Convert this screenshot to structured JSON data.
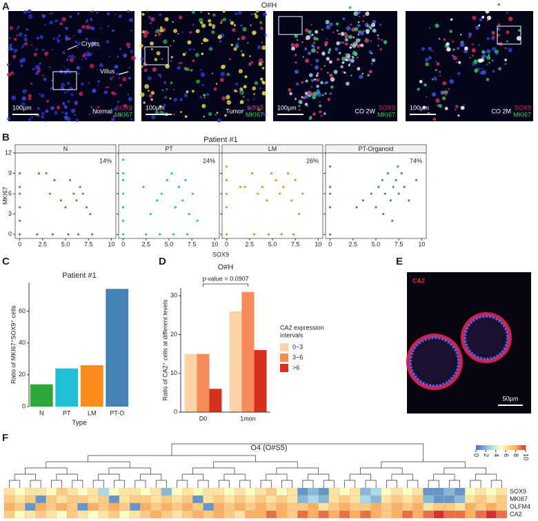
{
  "panel_labels": [
    "A",
    "B",
    "C",
    "D",
    "E",
    "F"
  ],
  "figure_a": {
    "title": "O#H",
    "images": [
      {
        "scale": "100µm",
        "caption": "Normal",
        "stains": [
          "SOX9",
          "MKI67"
        ],
        "notes": [
          "Crypts",
          "Villus"
        ]
      },
      {
        "scale": "100µm",
        "caption": "Tumor",
        "stains": [
          "SOX9",
          "MKI67"
        ]
      },
      {
        "scale": "100µm",
        "caption": "CO 2W",
        "stains": [
          "SOX9",
          "MKI67"
        ]
      },
      {
        "scale": "100µm",
        "caption": "CO 2M",
        "stains": [
          "SOX9",
          "MKI67"
        ]
      }
    ]
  },
  "figure_b": {
    "title": "Patient #1",
    "xlabel": "SOX9",
    "ylabel": "MKI67"
  },
  "figure_e": {
    "stain": "CA2",
    "scale": "50µm"
  },
  "chart_data": [
    {
      "type": "scatter",
      "title": "N",
      "annotation": "14%",
      "color": "#3aa63a",
      "x": [
        0,
        0,
        0,
        0,
        0,
        0,
        2.1,
        2.9,
        3.3,
        3.8,
        4.5,
        5.0,
        5.5,
        5.9,
        6.2,
        6.6,
        6.9,
        7.3,
        7.7,
        1.9,
        3.6,
        5.3,
        6.4,
        7.9
      ],
      "values": [
        9,
        7,
        6,
        4,
        2,
        0,
        9,
        9,
        6,
        8,
        5,
        4,
        8,
        6,
        5,
        7,
        6,
        4,
        3,
        0,
        0,
        0,
        0,
        0
      ],
      "xlim": [
        -0.5,
        10.5
      ],
      "ylim": [
        -0.6,
        12
      ],
      "xticks": [
        0,
        2.5,
        {
          "value": 5,
          "label": "5.0"
        },
        7.5,
        10
      ],
      "yticks": [
        0,
        3,
        6,
        9,
        12
      ]
    },
    {
      "type": "scatter",
      "title": "PT",
      "annotation": "24%",
      "color": "#22bcd4",
      "x": [
        0,
        0,
        0,
        0,
        0,
        0,
        0,
        2.2,
        3.0,
        3.7,
        4.2,
        4.8,
        5.3,
        5.7,
        6.1,
        6.5,
        6.8,
        7.2,
        7.6,
        8.1,
        2.5,
        4.0,
        5.5,
        7.0
      ],
      "values": [
        11,
        9,
        8,
        6,
        4,
        2,
        0,
        7,
        3,
        5,
        6,
        8,
        9,
        4,
        7,
        5,
        8,
        3,
        6,
        2,
        0,
        0,
        0,
        0
      ],
      "xlim": [
        -0.5,
        10.5
      ],
      "ylim": [
        -0.6,
        12
      ],
      "xticks": [
        0,
        2.5,
        {
          "value": 5,
          "label": "5.0"
        },
        7.5,
        10
      ],
      "yticks": [
        0,
        3,
        6,
        9,
        12
      ]
    },
    {
      "type": "scatter",
      "title": "LM",
      "annotation": "26%",
      "color": "#f28a24",
      "x": [
        0,
        0,
        0,
        0,
        0,
        1.5,
        2.0,
        2.8,
        3.4,
        3.9,
        4.4,
        4.9,
        5.4,
        5.8,
        6.2,
        6.7,
        7.1,
        7.5,
        7.9,
        8.3,
        3.0,
        4.6,
        6.0,
        7.3
      ],
      "values": [
        10,
        8,
        6,
        4,
        0,
        7,
        7,
        9,
        6,
        7,
        5,
        9,
        8,
        6,
        7,
        9,
        5,
        8,
        3,
        6,
        0,
        0,
        0,
        0
      ],
      "xlim": [
        -0.5,
        10.5
      ],
      "ylim": [
        -0.6,
        12
      ],
      "xticks": [
        0,
        2.5,
        {
          "value": 5,
          "label": "5.0"
        },
        7.5,
        10
      ],
      "yticks": [
        0,
        3,
        6,
        9,
        12
      ]
    },
    {
      "type": "scatter",
      "title": "PT-Organoid",
      "annotation": "74%",
      "color": "#4a7fb3",
      "x": [
        0,
        0,
        0,
        0,
        0,
        2.9,
        3.6,
        4.5,
        5.0,
        5.3,
        5.7,
        6.0,
        6.3,
        6.6,
        6.9,
        7.2,
        7.5,
        7.8,
        8.1,
        8.6,
        9.4,
        5.8,
        6.8,
        7.4
      ],
      "values": [
        10,
        7,
        6,
        4,
        0,
        4,
        5,
        6,
        4,
        7,
        8,
        6,
        9,
        5,
        7,
        8,
        6,
        9,
        7,
        5,
        8,
        3,
        2,
        10
      ],
      "xlim": [
        -0.5,
        10.5
      ],
      "ylim": [
        -0.6,
        12
      ],
      "xticks": [
        0,
        2.5,
        {
          "value": 5,
          "label": "5.0"
        },
        7.5,
        10
      ],
      "yticks": [
        0,
        3,
        6,
        9,
        12
      ]
    },
    {
      "type": "bar",
      "title": "Patient #1",
      "xlabel": "Type",
      "ylabel": "Ratio of MKI67⁺SOX9⁺ cells",
      "categories": [
        "N",
        "PT",
        "LM",
        "PT-O"
      ],
      "values": [
        14,
        24,
        26,
        74
      ],
      "colors": [
        "#2ca93a",
        "#21bfd6",
        "#ff8c1a",
        "#4682b4"
      ],
      "ylim": [
        0,
        78
      ],
      "yticks": [
        0,
        20,
        40,
        60
      ]
    },
    {
      "type": "groupedbar",
      "title": "O#H",
      "annotation": "p-value = 0.0907",
      "ylabel": "Ratio of CA2⁺ cells at different levels",
      "legend_title": [
        "CA2 expression",
        "intervals"
      ],
      "categories": [
        "D0",
        "1mon"
      ],
      "series": [
        {
          "name": "0~3",
          "color": "#fdd3a5",
          "values": [
            15,
            26
          ]
        },
        {
          "name": "3~6",
          "color": "#f58a5a",
          "values": [
            15,
            31
          ]
        },
        {
          "name": ">6",
          "color": "#d7301f",
          "values": [
            6,
            16
          ]
        }
      ],
      "ylim": [
        0,
        32
      ],
      "yticks": [
        0,
        10,
        20,
        30
      ]
    },
    {
      "type": "heatmap",
      "title": "O4 (O#S5)",
      "rows": [
        "SOX9",
        "MKI67",
        "OLFM4",
        "CA2"
      ],
      "zlim": [
        0,
        10
      ],
      "colorbar_ticks": [
        0,
        2,
        4,
        6,
        8,
        10
      ],
      "values": [
        [
          6,
          5,
          6,
          6,
          5,
          7,
          6,
          5,
          6,
          3,
          5,
          6,
          6,
          5,
          6,
          2,
          5,
          6,
          5,
          6,
          6,
          5,
          6,
          5,
          6,
          7,
          5,
          6,
          1,
          2,
          1,
          6,
          5,
          6,
          2,
          3,
          5,
          6,
          5,
          6,
          1,
          1,
          2,
          1,
          5,
          6,
          5,
          6
        ],
        [
          7,
          6,
          7,
          1,
          7,
          6,
          7,
          7,
          6,
          7,
          1,
          6,
          7,
          7,
          6,
          7,
          6,
          7,
          1,
          6,
          7,
          6,
          7,
          6,
          7,
          6,
          7,
          6,
          2,
          3,
          2,
          6,
          7,
          6,
          3,
          2,
          6,
          7,
          6,
          7,
          2,
          1,
          1,
          2,
          6,
          7,
          6,
          7
        ],
        [
          8,
          7,
          1,
          8,
          7,
          8,
          7,
          1,
          8,
          7,
          8,
          7,
          1,
          8,
          7,
          8,
          7,
          8,
          7,
          1,
          8,
          7,
          8,
          7,
          8,
          7,
          8,
          7,
          7,
          8,
          6,
          7,
          8,
          7,
          7,
          8,
          7,
          8,
          7,
          8,
          6,
          7,
          7,
          6,
          8,
          7,
          8,
          7
        ],
        [
          7,
          5,
          6,
          7,
          6,
          5,
          7,
          6,
          5,
          6,
          7,
          5,
          6,
          7,
          8,
          7,
          6,
          7,
          8,
          7,
          8,
          7,
          6,
          8,
          8,
          9,
          8,
          7,
          9,
          8,
          9,
          8,
          9,
          8,
          9,
          8,
          7,
          8,
          9,
          8,
          9,
          10,
          9,
          9,
          8,
          9,
          10,
          9
        ]
      ]
    }
  ]
}
